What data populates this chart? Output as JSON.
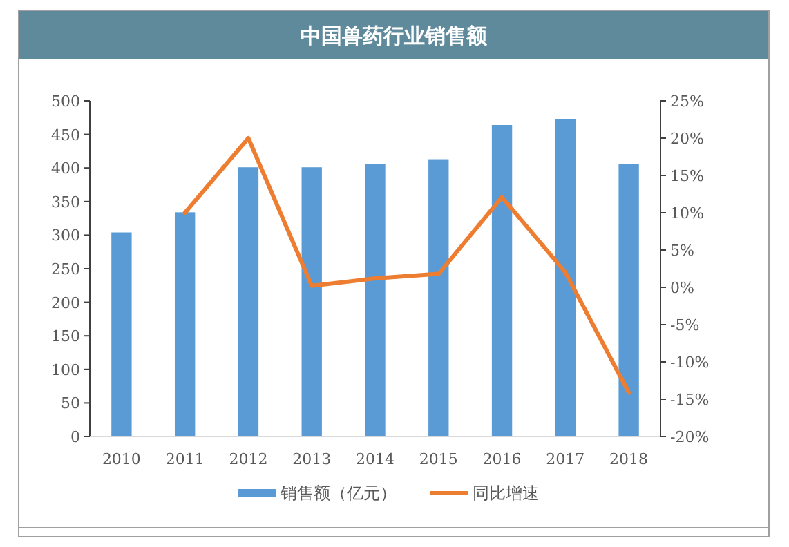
{
  "chart_data": {
    "type": "bar",
    "title": "中国兽药行业销售额",
    "categories": [
      "2010",
      "2011",
      "2012",
      "2013",
      "2014",
      "2015",
      "2016",
      "2017",
      "2018"
    ],
    "series": [
      {
        "name": "销售额（亿元）",
        "color": "#5b9bd5",
        "values": [
          304,
          334,
          401,
          401,
          406,
          413,
          464,
          473,
          406
        ]
      },
      {
        "name": "同比增速",
        "type": "line",
        "axis": "y2",
        "color": "#ed7d31",
        "values": [
          null,
          10,
          20,
          0.2,
          1.2,
          1.8,
          12.1,
          2,
          -14.1
        ]
      }
    ],
    "ylim": [
      0,
      500
    ],
    "yticks": [
      0,
      50,
      100,
      150,
      200,
      250,
      300,
      350,
      400,
      450,
      500
    ],
    "y2lim": [
      -20,
      25
    ],
    "y2ticks": [
      {
        "value": -20,
        "label": "-20%"
      },
      {
        "value": -15,
        "label": "-15%"
      },
      {
        "value": -10,
        "label": "-10%"
      },
      {
        "value": -5,
        "label": "-5%"
      },
      {
        "value": 0,
        "label": "0%"
      },
      {
        "value": 5,
        "label": "5%"
      },
      {
        "value": 10,
        "label": "10%"
      },
      {
        "value": 15,
        "label": "15%"
      },
      {
        "value": 20,
        "label": "20%"
      },
      {
        "value": 25,
        "label": "25%"
      }
    ],
    "legend": "bottom",
    "grid": false,
    "marker": "none",
    "line_style": "solid"
  }
}
